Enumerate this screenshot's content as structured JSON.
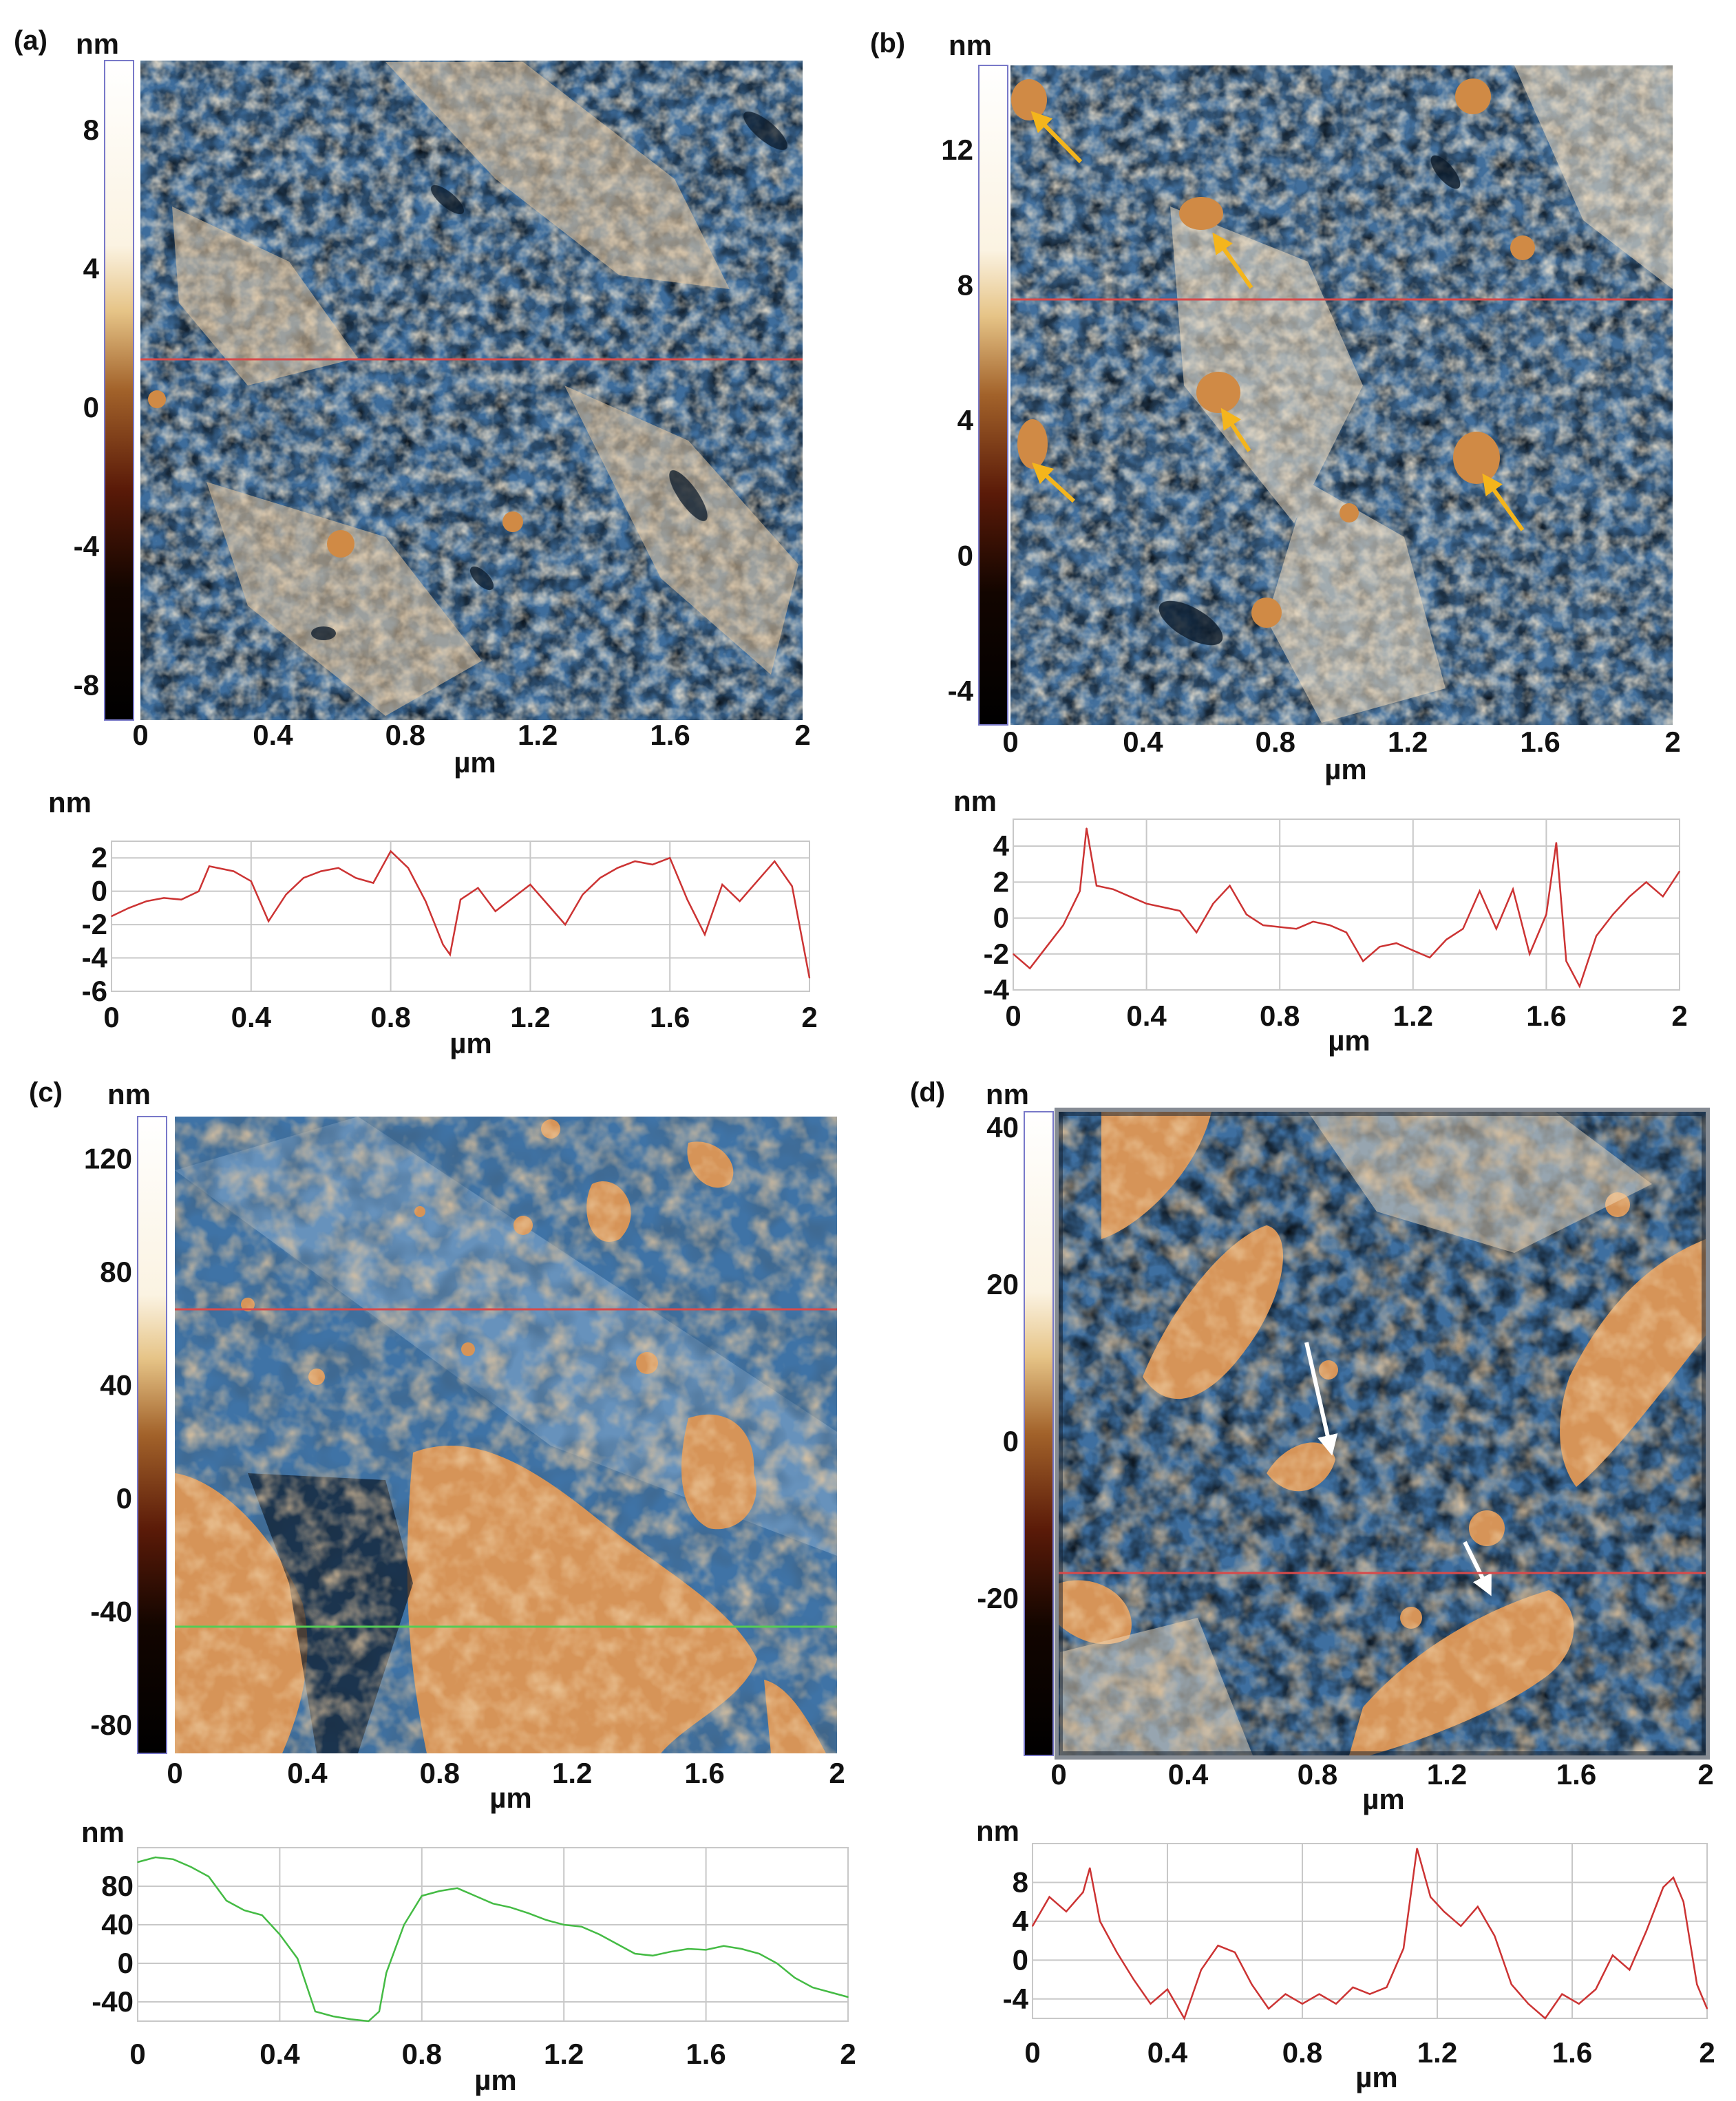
{
  "chart_data": [
    {
      "panel": "(a)",
      "type": "heatmap",
      "colorbar": {
        "unit": "nm",
        "ticks": [
          "8",
          "4",
          "0",
          "-4",
          "-8"
        ],
        "range": [
          -9,
          10
        ]
      },
      "xaxis": {
        "unit": "µm",
        "ticks": [
          "0",
          "0.4",
          "0.8",
          "1.2",
          "1.6",
          "2"
        ],
        "range": [
          0,
          2
        ]
      },
      "profile_line_y": 1.2
    },
    {
      "panel": "(a)",
      "type": "line",
      "ylabel": "nm",
      "xlabel": "µm",
      "xlim": [
        0,
        2
      ],
      "ylim": [
        -6,
        3
      ],
      "yticks": [
        "2",
        "0",
        "-2",
        "-4",
        "-6"
      ],
      "xticks": [
        "0",
        "0.4",
        "0.8",
        "1.2",
        "1.6",
        "2"
      ],
      "series": [
        {
          "color": "#cc3333",
          "x": [
            0,
            0.05,
            0.1,
            0.15,
            0.2,
            0.25,
            0.28,
            0.35,
            0.4,
            0.45,
            0.5,
            0.55,
            0.6,
            0.65,
            0.7,
            0.75,
            0.8,
            0.85,
            0.9,
            0.95,
            0.97,
            1.0,
            1.05,
            1.1,
            1.15,
            1.2,
            1.25,
            1.3,
            1.35,
            1.4,
            1.45,
            1.5,
            1.55,
            1.6,
            1.65,
            1.7,
            1.75,
            1.8,
            1.85,
            1.9,
            1.95,
            2.0
          ],
          "y": [
            -1.5,
            -1.0,
            -0.6,
            -0.4,
            -0.5,
            0.0,
            1.5,
            1.2,
            0.6,
            -1.8,
            -0.2,
            0.8,
            1.2,
            1.4,
            0.8,
            0.5,
            2.4,
            1.4,
            -0.6,
            -3.2,
            -3.8,
            -0.5,
            0.2,
            -1.2,
            -0.4,
            0.4,
            -0.8,
            -2.0,
            -0.2,
            0.8,
            1.4,
            1.8,
            1.6,
            2.0,
            -0.5,
            -2.6,
            0.4,
            -0.6,
            0.6,
            1.8,
            0.3,
            -5.2
          ]
        }
      ]
    },
    {
      "panel": "(b)",
      "type": "heatmap",
      "colorbar": {
        "unit": "nm",
        "ticks": [
          "12",
          "8",
          "4",
          "0",
          "-4"
        ],
        "range": [
          -5,
          14.5
        ]
      },
      "xaxis": {
        "unit": "µm",
        "ticks": [
          "0",
          "0.4",
          "0.8",
          "1.2",
          "1.6",
          "2"
        ],
        "range": [
          0,
          2
        ]
      },
      "profile_line_y": 1.36
    },
    {
      "panel": "(b)",
      "type": "line",
      "ylabel": "nm",
      "xlabel": "µm",
      "xlim": [
        0,
        2
      ],
      "ylim": [
        -4,
        5.5
      ],
      "yticks": [
        "4",
        "2",
        "0",
        "-2",
        "-4"
      ],
      "xticks": [
        "0",
        "0.4",
        "0.8",
        "1.2",
        "1.6",
        "2"
      ],
      "series": [
        {
          "color": "#cc3333",
          "x": [
            0,
            0.05,
            0.1,
            0.15,
            0.2,
            0.22,
            0.25,
            0.3,
            0.35,
            0.4,
            0.45,
            0.5,
            0.55,
            0.6,
            0.65,
            0.7,
            0.75,
            0.8,
            0.85,
            0.9,
            0.95,
            1.0,
            1.05,
            1.1,
            1.15,
            1.2,
            1.25,
            1.3,
            1.35,
            1.4,
            1.45,
            1.5,
            1.55,
            1.6,
            1.63,
            1.66,
            1.7,
            1.75,
            1.8,
            1.85,
            1.9,
            1.95,
            2.0
          ],
          "y": [
            -2.0,
            -2.8,
            -1.6,
            -0.4,
            1.5,
            5.0,
            1.8,
            1.6,
            1.2,
            0.8,
            0.6,
            0.4,
            -0.8,
            0.8,
            1.8,
            0.2,
            -0.4,
            -0.5,
            -0.6,
            -0.2,
            -0.4,
            -0.8,
            -2.4,
            -1.6,
            -1.4,
            -1.8,
            -2.2,
            -1.2,
            -0.6,
            1.5,
            -0.6,
            1.6,
            -2.0,
            0.2,
            4.2,
            -2.4,
            -3.8,
            -1.0,
            0.2,
            1.2,
            2.0,
            1.2,
            2.6
          ]
        }
      ]
    },
    {
      "panel": "(c)",
      "type": "heatmap",
      "colorbar": {
        "unit": "nm",
        "ticks": [
          "120",
          "80",
          "40",
          "0",
          "-40",
          "-80"
        ],
        "range": [
          -90,
          135
        ]
      },
      "xaxis": {
        "unit": "µm",
        "ticks": [
          "0",
          "0.4",
          "0.8",
          "1.2",
          "1.6",
          "2"
        ],
        "range": [
          0,
          2
        ]
      }
    },
    {
      "panel": "(c)",
      "type": "line",
      "ylabel": "nm",
      "xlabel": "µm",
      "xlim": [
        0,
        2
      ],
      "ylim": [
        -60,
        120
      ],
      "yticks": [
        "80",
        "40",
        "0",
        "-40"
      ],
      "xticks": [
        "0",
        "0.4",
        "0.8",
        "1.2",
        "1.6",
        "2"
      ],
      "series": [
        {
          "color": "#44bb44",
          "x": [
            0,
            0.05,
            0.1,
            0.15,
            0.2,
            0.25,
            0.3,
            0.35,
            0.4,
            0.45,
            0.5,
            0.55,
            0.6,
            0.65,
            0.68,
            0.7,
            0.75,
            0.8,
            0.85,
            0.9,
            0.95,
            1.0,
            1.05,
            1.1,
            1.15,
            1.2,
            1.25,
            1.3,
            1.35,
            1.4,
            1.45,
            1.5,
            1.55,
            1.6,
            1.65,
            1.7,
            1.75,
            1.8,
            1.85,
            1.9,
            1.95,
            2.0
          ],
          "y": [
            105,
            110,
            108,
            100,
            90,
            65,
            55,
            50,
            30,
            5,
            -50,
            -55,
            -58,
            -60,
            -50,
            -10,
            40,
            70,
            75,
            78,
            70,
            62,
            58,
            52,
            45,
            40,
            38,
            30,
            20,
            10,
            8,
            12,
            15,
            14,
            18,
            15,
            10,
            0,
            -15,
            -25,
            -30,
            -35
          ]
        }
      ]
    },
    {
      "panel": "(d)",
      "type": "heatmap",
      "colorbar": {
        "unit": "nm",
        "ticks": [
          "40",
          "20",
          "0",
          "-20"
        ],
        "range": [
          -40,
          42
        ]
      },
      "xaxis": {
        "unit": "µm",
        "ticks": [
          "0",
          "0.4",
          "0.8",
          "1.2",
          "1.6",
          "2"
        ],
        "range": [
          0,
          2
        ]
      },
      "profile_line_y": 1.38
    },
    {
      "panel": "(d)",
      "type": "line",
      "ylabel": "nm",
      "xlabel": "µm",
      "xlim": [
        0,
        2
      ],
      "ylim": [
        -6,
        12
      ],
      "yticks": [
        "8",
        "4",
        "0",
        "-4"
      ],
      "xticks": [
        "0",
        "0.4",
        "0.8",
        "1.2",
        "1.6",
        "2"
      ],
      "series": [
        {
          "color": "#cc3333",
          "x": [
            0,
            0.05,
            0.1,
            0.15,
            0.17,
            0.2,
            0.25,
            0.3,
            0.35,
            0.4,
            0.45,
            0.5,
            0.55,
            0.6,
            0.65,
            0.7,
            0.75,
            0.8,
            0.85,
            0.9,
            0.95,
            1.0,
            1.05,
            1.1,
            1.14,
            1.18,
            1.22,
            1.27,
            1.32,
            1.37,
            1.42,
            1.47,
            1.52,
            1.57,
            1.62,
            1.67,
            1.72,
            1.77,
            1.82,
            1.87,
            1.9,
            1.93,
            1.97,
            2.0
          ],
          "y": [
            3.5,
            6.5,
            5.0,
            7.0,
            9.5,
            4.0,
            0.8,
            -2.0,
            -4.5,
            -3.0,
            -6.0,
            -1.0,
            1.5,
            0.8,
            -2.5,
            -5.0,
            -3.5,
            -4.5,
            -3.5,
            -4.5,
            -2.8,
            -3.5,
            -2.8,
            1.2,
            11.5,
            6.5,
            5.0,
            3.5,
            5.5,
            2.5,
            -2.5,
            -4.5,
            -6.0,
            -3.5,
            -4.5,
            -3.0,
            0.5,
            -1.0,
            3.0,
            7.5,
            8.5,
            6.0,
            -2.5,
            -5.0
          ]
        }
      ]
    }
  ]
}
